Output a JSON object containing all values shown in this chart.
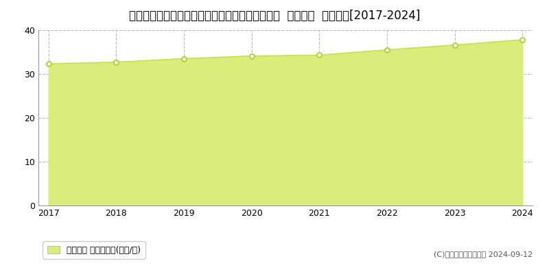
{
  "title": "新潟県新潟市中央区弁天橋通３丁目８５６番１外  地価公示  地価推移[2017-2024]",
  "years": [
    2017,
    2018,
    2019,
    2020,
    2021,
    2022,
    2023,
    2024
  ],
  "values": [
    32.3,
    32.7,
    33.5,
    34.1,
    34.3,
    35.5,
    36.6,
    37.8
  ],
  "ylim": [
    0,
    40
  ],
  "yticks": [
    0,
    10,
    20,
    30,
    40
  ],
  "line_color": "#c8de4a",
  "fill_color": "#d8ed7a",
  "fill_alpha": 1.0,
  "marker_color": "#ffffff",
  "marker_edge_color": "#b8ce3a",
  "bg_color": "#ffffff",
  "grid_color": "#bbbbbb",
  "legend_label": "地価公示 平均坪単価(万円/坪)",
  "copyright_text": "(C)土地価格ドットコム 2024-09-12",
  "title_fontsize": 12,
  "axis_fontsize": 9,
  "legend_fontsize": 9
}
